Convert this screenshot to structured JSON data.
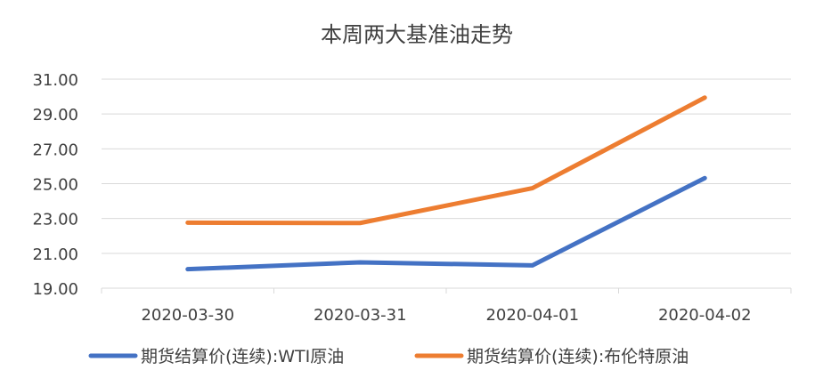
{
  "chart_data": {
    "type": "line",
    "title": "本周两大基准油走势",
    "categories": [
      "2020-03-30",
      "2020-03-31",
      "2020-04-01",
      "2020-04-02"
    ],
    "ylim": [
      19,
      31
    ],
    "yticks": [
      "19.00",
      "21.00",
      "23.00",
      "25.00",
      "27.00",
      "29.00",
      "31.00"
    ],
    "grid": true,
    "legend_position": "bottom",
    "series": [
      {
        "name": "期货结算价(连续):WTI原油",
        "color": "#4472c4",
        "values": [
          20.09,
          20.48,
          20.31,
          25.32
        ]
      },
      {
        "name": "期货结算价(连续):布伦特原油",
        "color": "#ed7d31",
        "values": [
          22.76,
          22.74,
          24.74,
          29.94
        ]
      }
    ]
  }
}
